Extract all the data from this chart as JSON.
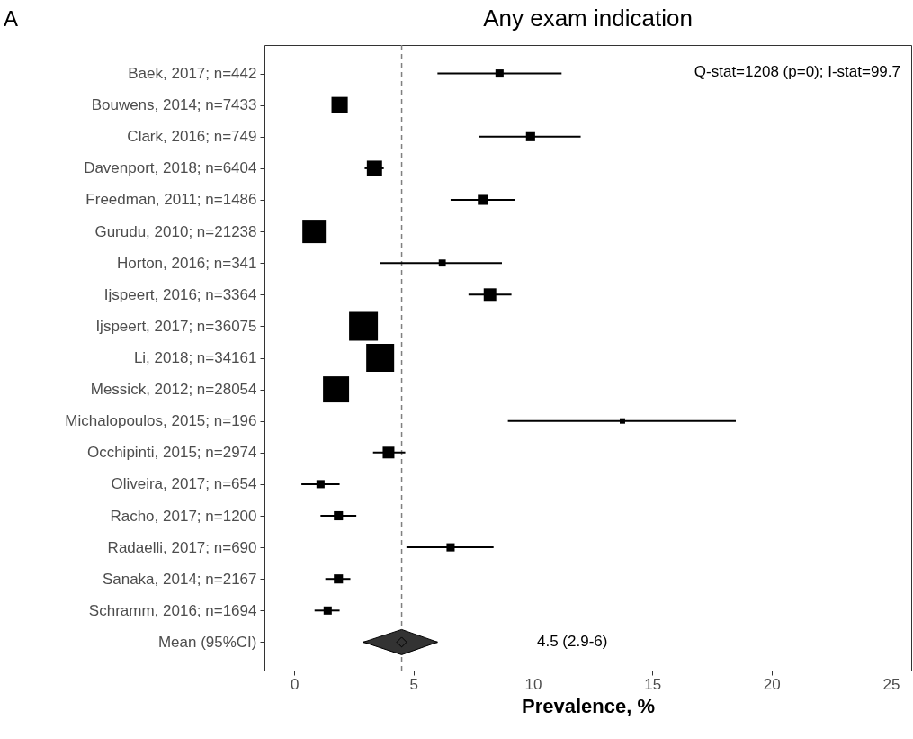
{
  "chart_data": {
    "type": "bubble",
    "title": "Any exam indication",
    "xlabel": "Prevalence, %",
    "orientation": "horizontal",
    "marker": "square",
    "grid": false,
    "categories": [
      "Baek, 2017; n=442",
      "Bouwens, 2014; n=7433",
      "Clark, 2016; n=749",
      "Davenport, 2018; n=6404",
      "Freedman, 2011; n=1486",
      "Gurudu, 2010; n=21238",
      "Horton, 2016; n=341",
      "Ijspeert, 2016; n=3364",
      "Ijspeert, 2017; n=36075",
      "Li, 2018; n=34161",
      "Messick, 2012; n=28054",
      "Michalopoulos, 2015; n=196",
      "Occhipinti, 2015; n=2974",
      "Oliveira, 2017; n=654",
      "Racho, 2017; n=1200",
      "Radaelli, 2017; n=690",
      "Sanaka, 2014; n=2167",
      "Schramm, 2016; n=1694",
      "Mean (95%CI)"
    ],
    "xlim": [
      -1.25,
      25.85
    ],
    "xticks": [
      0,
      5,
      10,
      15,
      20,
      25
    ],
    "series": [
      {
        "color": "#000000",
        "values": [
          8.6,
          1.9,
          9.9,
          3.36,
          7.9,
          0.83,
          6.2,
          8.2,
          2.9,
          3.6,
          1.75,
          13.75,
          3.95,
          1.1,
          1.85,
          6.55,
          1.85,
          1.4,
          null
        ],
        "errors": [
          [
            6.0,
            11.2
          ],
          null,
          [
            7.75,
            12.0
          ],
          [
            2.95,
            3.75
          ],
          [
            6.55,
            9.25
          ],
          null,
          [
            3.6,
            8.7
          ],
          [
            7.3,
            9.1
          ],
          null,
          null,
          null,
          [
            8.95,
            18.5
          ],
          [
            3.3,
            4.65
          ],
          [
            0.3,
            1.9
          ],
          [
            1.1,
            2.6
          ],
          [
            4.7,
            8.35
          ],
          [
            1.3,
            2.35
          ],
          [
            0.85,
            1.9
          ],
          null
        ],
        "sizes": [
          0.08,
          0.32,
          0.1,
          0.28,
          0.12,
          0.66,
          0.06,
          0.19,
          1.0,
          0.94,
          0.82,
          0.035,
          0.165,
          0.08,
          0.1,
          0.08,
          0.1,
          0.08,
          null
        ]
      },
      {
        "color": "#333333",
        "marker": "diamond",
        "values": [
          null,
          null,
          null,
          null,
          null,
          null,
          null,
          null,
          null,
          null,
          null,
          null,
          null,
          null,
          null,
          null,
          null,
          null,
          4.5
        ],
        "errors": [
          null,
          null,
          null,
          null,
          null,
          null,
          null,
          null,
          null,
          null,
          null,
          null,
          null,
          null,
          null,
          null,
          null,
          null,
          [
            2.9,
            6.0
          ]
        ]
      }
    ],
    "ref_lines": [
      {
        "axis": "x",
        "value": 4.5,
        "color": "#808080",
        "line_style": "dashed"
      }
    ],
    "annotations": [
      "A",
      "Q-stat=1208 (p=0); I-stat=99.7",
      "4.5 (2.9-6)"
    ]
  }
}
